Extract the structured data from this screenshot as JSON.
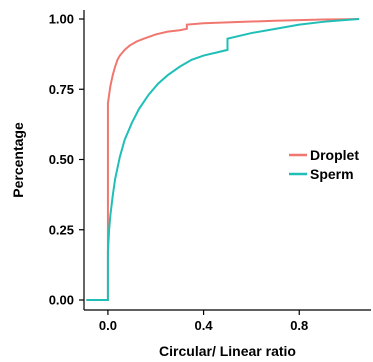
{
  "chart_data": {
    "type": "line",
    "xlabel": "Circular/ Linear ratio",
    "ylabel": "Percentage",
    "xlim": [
      -0.1,
      1.1
    ],
    "ylim": [
      0,
      1.0
    ],
    "x_ticks": [
      {
        "value": 0.0,
        "label": "0.0"
      },
      {
        "value": 0.4,
        "label": "0.4"
      },
      {
        "value": 0.8,
        "label": "0.8"
      }
    ],
    "y_ticks": [
      {
        "value": 0.0,
        "label": "0.00"
      },
      {
        "value": 0.25,
        "label": "0.25"
      },
      {
        "value": 0.5,
        "label": "0.50"
      },
      {
        "value": 0.75,
        "label": "0.75"
      },
      {
        "value": 1.0,
        "label": "1.00"
      }
    ],
    "grid": false,
    "legend_position": "right",
    "series": [
      {
        "name": "Droplet",
        "color": "#F0776F",
        "x": [
          -0.09,
          0.0,
          0.0,
          0.0,
          0.005,
          0.01,
          0.02,
          0.03,
          0.04,
          0.05,
          0.07,
          0.09,
          0.12,
          0.15,
          0.2,
          0.25,
          0.3,
          0.33,
          0.33,
          0.4,
          0.5,
          0.6,
          0.7,
          0.8,
          0.9,
          1.0,
          1.05
        ],
        "y": [
          0.0,
          0.0,
          0.18,
          0.7,
          0.73,
          0.76,
          0.8,
          0.83,
          0.855,
          0.87,
          0.89,
          0.905,
          0.92,
          0.93,
          0.945,
          0.955,
          0.96,
          0.965,
          0.98,
          0.985,
          0.988,
          0.991,
          0.994,
          0.996,
          0.998,
          0.999,
          1.0
        ]
      },
      {
        "name": "Sperm",
        "color": "#1FBFB8",
        "x": [
          -0.09,
          0.0,
          0.0,
          0.005,
          0.01,
          0.02,
          0.03,
          0.05,
          0.07,
          0.1,
          0.13,
          0.17,
          0.21,
          0.25,
          0.3,
          0.35,
          0.4,
          0.45,
          0.5,
          0.5,
          0.6,
          0.7,
          0.8,
          0.9,
          1.0,
          1.05
        ],
        "y": [
          0.0,
          0.0,
          0.17,
          0.25,
          0.3,
          0.37,
          0.43,
          0.51,
          0.57,
          0.63,
          0.68,
          0.73,
          0.77,
          0.8,
          0.83,
          0.855,
          0.87,
          0.88,
          0.89,
          0.93,
          0.95,
          0.965,
          0.98,
          0.99,
          0.997,
          1.0
        ]
      }
    ]
  }
}
